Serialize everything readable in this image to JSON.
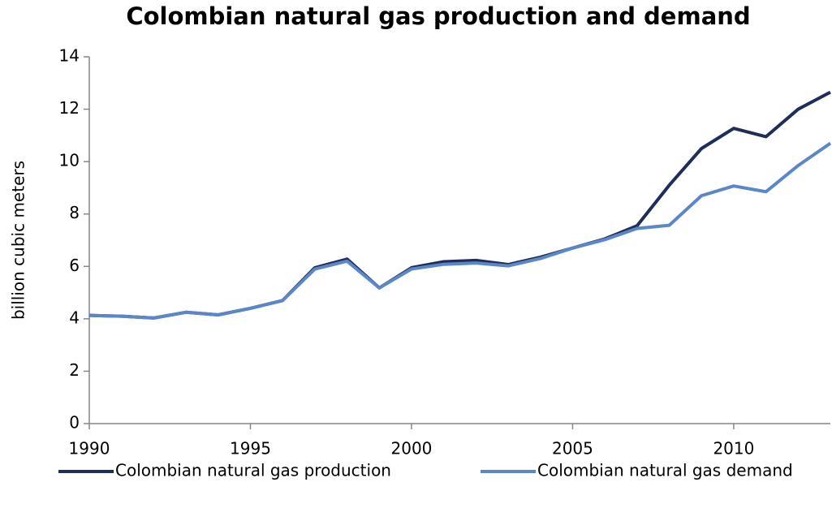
{
  "chart_data": {
    "type": "line",
    "title": "Colombian natural gas production and demand",
    "ylabel": "billion cubic meters",
    "x": [
      1990,
      1991,
      1992,
      1993,
      1994,
      1995,
      1996,
      1997,
      1998,
      1999,
      2000,
      2001,
      2002,
      2003,
      2004,
      2005,
      2006,
      2007,
      2008,
      2009,
      2010,
      2011,
      2012,
      2013
    ],
    "series": [
      {
        "name": "Colombian natural gas production",
        "color": "#1f2d5a",
        "values": [
          4.13,
          4.1,
          4.03,
          4.25,
          4.15,
          4.4,
          4.7,
          5.95,
          6.28,
          5.18,
          5.95,
          6.18,
          6.23,
          6.07,
          6.35,
          6.7,
          7.05,
          7.55,
          9.1,
          10.5,
          11.27,
          10.95,
          12.0,
          12.65
        ]
      },
      {
        "name": "Colombian natural gas demand",
        "color": "#5b87c8",
        "values": [
          4.13,
          4.1,
          4.03,
          4.25,
          4.15,
          4.4,
          4.7,
          5.9,
          6.2,
          5.18,
          5.9,
          6.08,
          6.13,
          6.02,
          6.3,
          6.7,
          7.02,
          7.45,
          7.57,
          8.7,
          9.07,
          8.85,
          9.85,
          10.7
        ]
      }
    ],
    "xlim": [
      1990,
      2013
    ],
    "xticks": [
      1990,
      1995,
      2000,
      2005,
      2010
    ],
    "ylim": [
      0,
      14
    ],
    "yticks": [
      0,
      2,
      4,
      6,
      8,
      10,
      12,
      14
    ],
    "legend": "bottom",
    "grid": false
  }
}
